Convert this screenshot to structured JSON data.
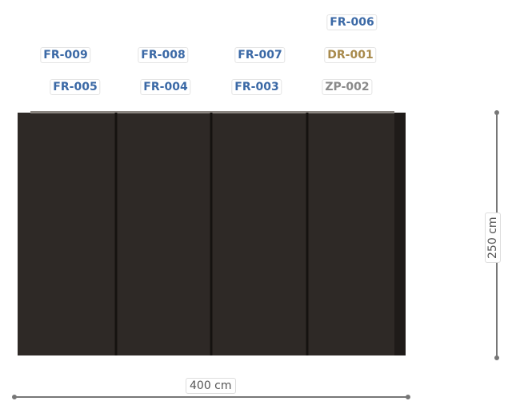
{
  "labels": [
    "FR-006",
    "FR-009",
    "FR-008",
    "FR-007",
    "DR-001",
    "FR-005",
    "FR-004",
    "FR-003",
    "ZP-002"
  ],
  "dimensions": {
    "width": "400 cm",
    "height": "250 cm"
  }
}
